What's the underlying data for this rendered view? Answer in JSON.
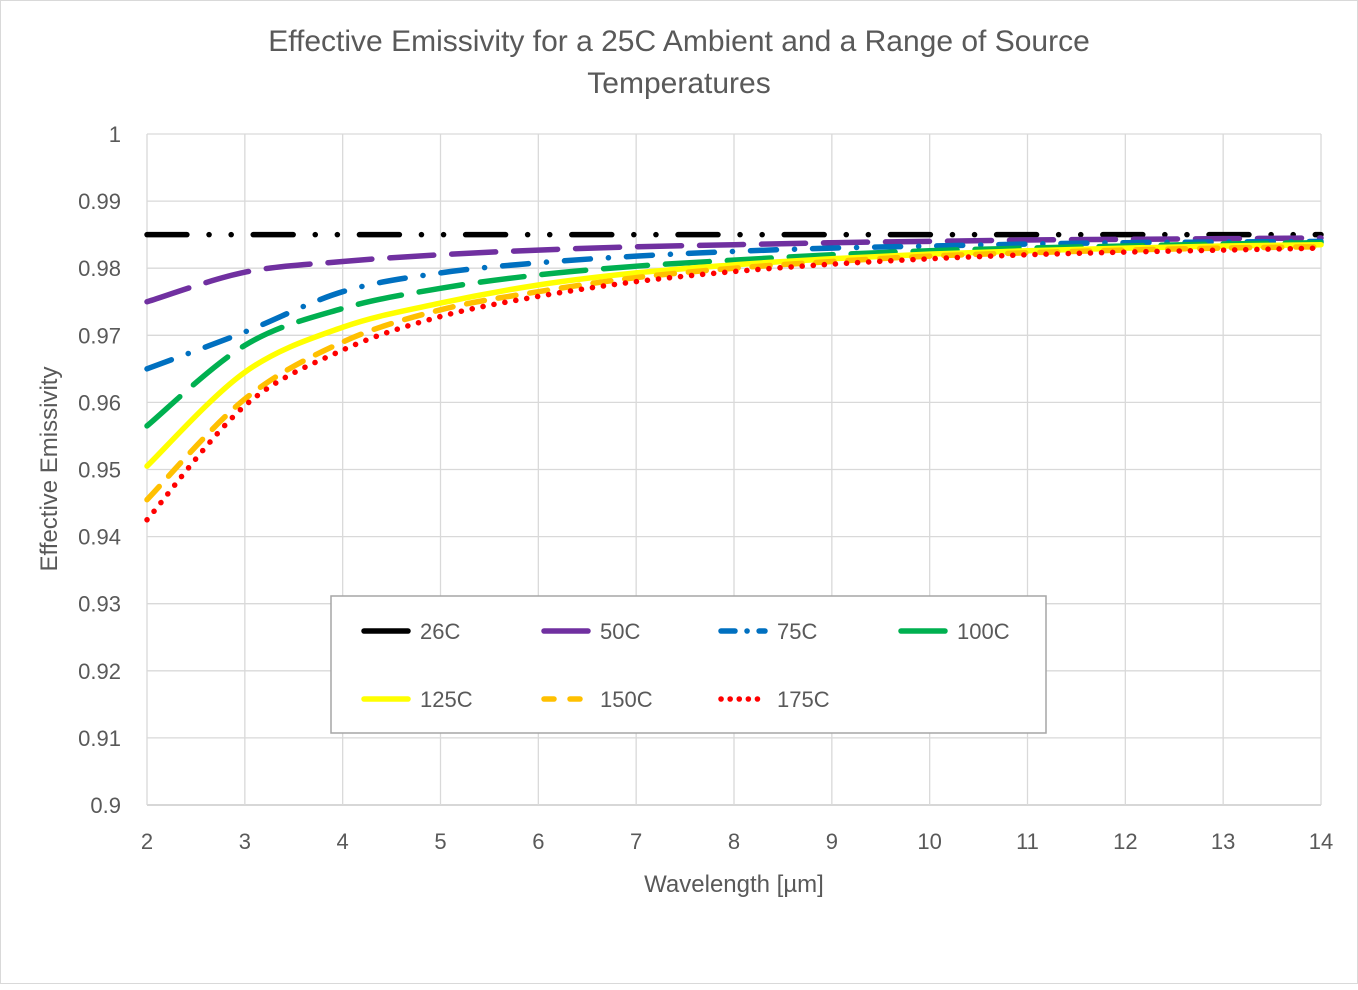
{
  "chart_data": {
    "type": "line",
    "title": "Effective Emissivity for a 25C Ambient and a Range of Source Temperatures",
    "title_lines": [
      "Effective Emissivity for a 25C Ambient and a Range of Source",
      "Temperatures"
    ],
    "xlabel": "Wavelength [µm]",
    "ylabel": "Effective Emissivity",
    "xlim": [
      2,
      14
    ],
    "ylim": [
      0.9,
      1.0
    ],
    "x_ticks": [
      "2",
      "3",
      "4",
      "5",
      "6",
      "7",
      "8",
      "9",
      "10",
      "11",
      "12",
      "13",
      "14"
    ],
    "y_ticks": [
      "0.9",
      "0.91",
      "0.92",
      "0.93",
      "0.94",
      "0.95",
      "0.96",
      "0.97",
      "0.98",
      "0.99",
      "1"
    ],
    "grid": true,
    "legend_placement": "inside-lower-center",
    "x": [
      2,
      3,
      4,
      5,
      6,
      7,
      8,
      9,
      10,
      11,
      12,
      13,
      14
    ],
    "series": [
      {
        "name": "26C",
        "color": "#000000",
        "dash": "dash-dot-dot",
        "values": [
          0.985,
          0.985,
          0.985,
          0.985,
          0.985,
          0.985,
          0.985,
          0.985,
          0.985,
          0.985,
          0.985,
          0.985,
          0.985
        ]
      },
      {
        "name": "50C",
        "color": "#7030a0",
        "dash": "long-dash",
        "values": [
          0.975,
          0.9794,
          0.981,
          0.982,
          0.9827,
          0.9832,
          0.9835,
          0.9838,
          0.984,
          0.9842,
          0.9843,
          0.9844,
          0.9845
        ]
      },
      {
        "name": "75C",
        "color": "#0070c0",
        "dash": "dash-dot",
        "values": [
          0.965,
          0.9705,
          0.9765,
          0.9793,
          0.9808,
          0.9818,
          0.9825,
          0.983,
          0.9833,
          0.9836,
          0.9838,
          0.9839,
          0.984
        ]
      },
      {
        "name": "100C",
        "color": "#00b050",
        "dash": "long-dash",
        "values": [
          0.9565,
          0.9685,
          0.974,
          0.977,
          0.979,
          0.9803,
          0.9812,
          0.982,
          0.9826,
          0.983,
          0.9833,
          0.9836,
          0.9838
        ]
      },
      {
        "name": "125C",
        "color": "#ffff00",
        "dash": "solid",
        "values": [
          0.9505,
          0.9645,
          0.9712,
          0.9748,
          0.9775,
          0.9793,
          0.9805,
          0.9814,
          0.9821,
          0.9826,
          0.983,
          0.9833,
          0.9835
        ]
      },
      {
        "name": "150C",
        "color": "#ffc000",
        "dash": "dash",
        "values": [
          0.9455,
          0.9605,
          0.969,
          0.9738,
          0.9765,
          0.9786,
          0.98,
          0.981,
          0.9818,
          0.9823,
          0.9827,
          0.983,
          0.9832
        ]
      },
      {
        "name": "175C",
        "color": "#ff0000",
        "dash": "dot",
        "values": [
          0.9425,
          0.9595,
          0.9678,
          0.9728,
          0.9758,
          0.978,
          0.9795,
          0.9806,
          0.9814,
          0.982,
          0.9824,
          0.9827,
          0.983
        ]
      }
    ]
  }
}
